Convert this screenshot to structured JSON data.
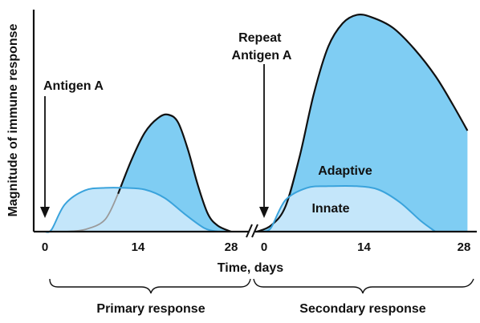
{
  "chart_data": {
    "type": "area",
    "ylabel": "Magnitude of immune response",
    "xlabel": "Time, days",
    "colors": {
      "adaptive_fill": "#7fcdf3",
      "innate_fill": "#c4e6fa",
      "innate_line": "#3aa3dc",
      "outline": "#111111",
      "hidden_curve": "#9a9a9a"
    },
    "axis_break": "between primary day 28 and secondary day 0",
    "primary": {
      "ticks": [
        "0",
        "14",
        "28"
      ],
      "tick_values": [
        0,
        14,
        28
      ],
      "antigen_label": "Antigen A",
      "antigen_day": 0,
      "range_label": "Primary response",
      "innate": [
        [
          0,
          0
        ],
        [
          1,
          0.5
        ],
        [
          3,
          6.5
        ],
        [
          6,
          9.8
        ],
        [
          9,
          10.4
        ],
        [
          12,
          10.4
        ],
        [
          15,
          10
        ],
        [
          18,
          8
        ],
        [
          21,
          4.2
        ],
        [
          24,
          0.8
        ],
        [
          26,
          0
        ]
      ],
      "adaptive": [
        [
          3,
          0
        ],
        [
          6,
          0.5
        ],
        [
          9,
          2.8
        ],
        [
          11,
          9
        ],
        [
          13,
          17
        ],
        [
          15,
          23.5
        ],
        [
          17,
          27
        ],
        [
          18.5,
          27.8
        ],
        [
          20,
          26
        ],
        [
          21.5,
          19.5
        ],
        [
          23,
          11
        ],
        [
          24.5,
          4.2
        ],
        [
          26,
          1.4
        ],
        [
          28,
          0
        ]
      ]
    },
    "secondary": {
      "ticks": [
        "0",
        "14",
        "28"
      ],
      "tick_values": [
        0,
        14,
        28
      ],
      "antigen_label": "Repeat\nAntigen A",
      "antigen_day": 0,
      "range_label": "Secondary response",
      "innate": [
        [
          0,
          0
        ],
        [
          1,
          1
        ],
        [
          3,
          7.5
        ],
        [
          6,
          10.4
        ],
        [
          9,
          10.8
        ],
        [
          13,
          10.8
        ],
        [
          16,
          10
        ],
        [
          19,
          7
        ],
        [
          22,
          2.5
        ],
        [
          24,
          0
        ]
      ],
      "adaptive": [
        [
          -1,
          0
        ],
        [
          1,
          1.5
        ],
        [
          3,
          6
        ],
        [
          5,
          18
        ],
        [
          7,
          33
        ],
        [
          9,
          44
        ],
        [
          11,
          49.5
        ],
        [
          13,
          51.5
        ],
        [
          15,
          51
        ],
        [
          18,
          48.5
        ],
        [
          21,
          43.5
        ],
        [
          24,
          37
        ],
        [
          26.5,
          30
        ],
        [
          28.5,
          24
        ]
      ],
      "adaptive_label": "Adaptive",
      "innate_label": "Innate"
    },
    "ylim": [
      0,
      52
    ],
    "grid": false,
    "legend": "none"
  }
}
